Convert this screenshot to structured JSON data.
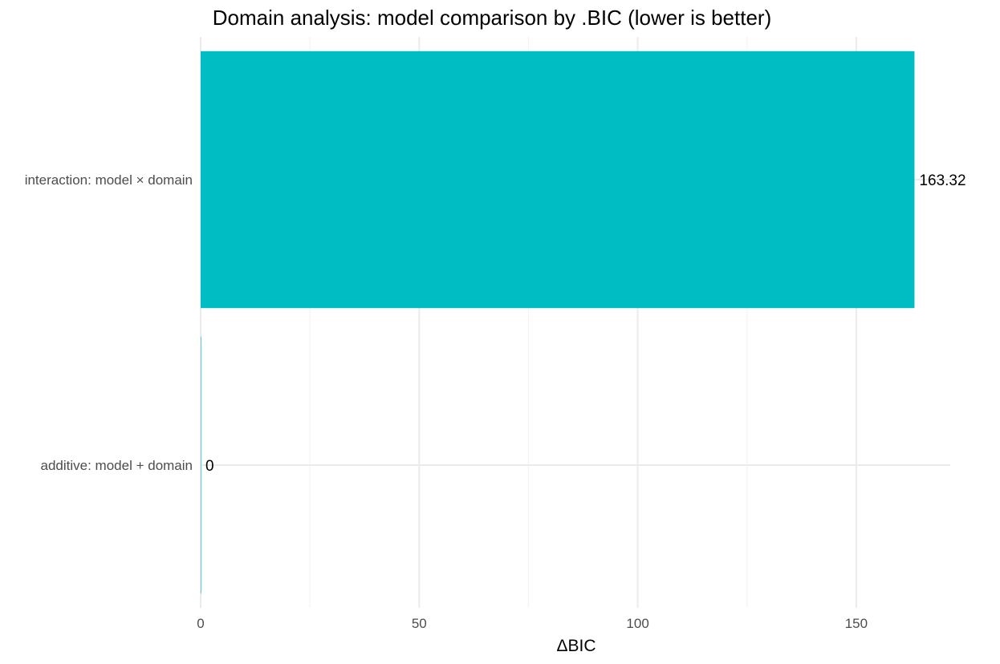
{
  "chart_data": {
    "type": "bar",
    "orientation": "horizontal",
    "title": "Domain analysis: model comparison by .BIC (lower is better)",
    "xlabel": "ΔBIC",
    "ylabel": "",
    "categories": [
      "interaction: model × domain",
      "additive: model + domain"
    ],
    "values": [
      163.32,
      0
    ],
    "data_labels": [
      "163.32",
      "0"
    ],
    "xlim": [
      0,
      171.5
    ],
    "xticks": [
      0,
      50,
      100,
      150
    ],
    "xtick_labels": [
      "0",
      "50",
      "100",
      "150"
    ],
    "grid": true,
    "legend": "none",
    "colors": {
      "bar": "#00BDC4",
      "grid_major": "#EBEBEB",
      "grid_minor": "#F3F3F3"
    }
  }
}
